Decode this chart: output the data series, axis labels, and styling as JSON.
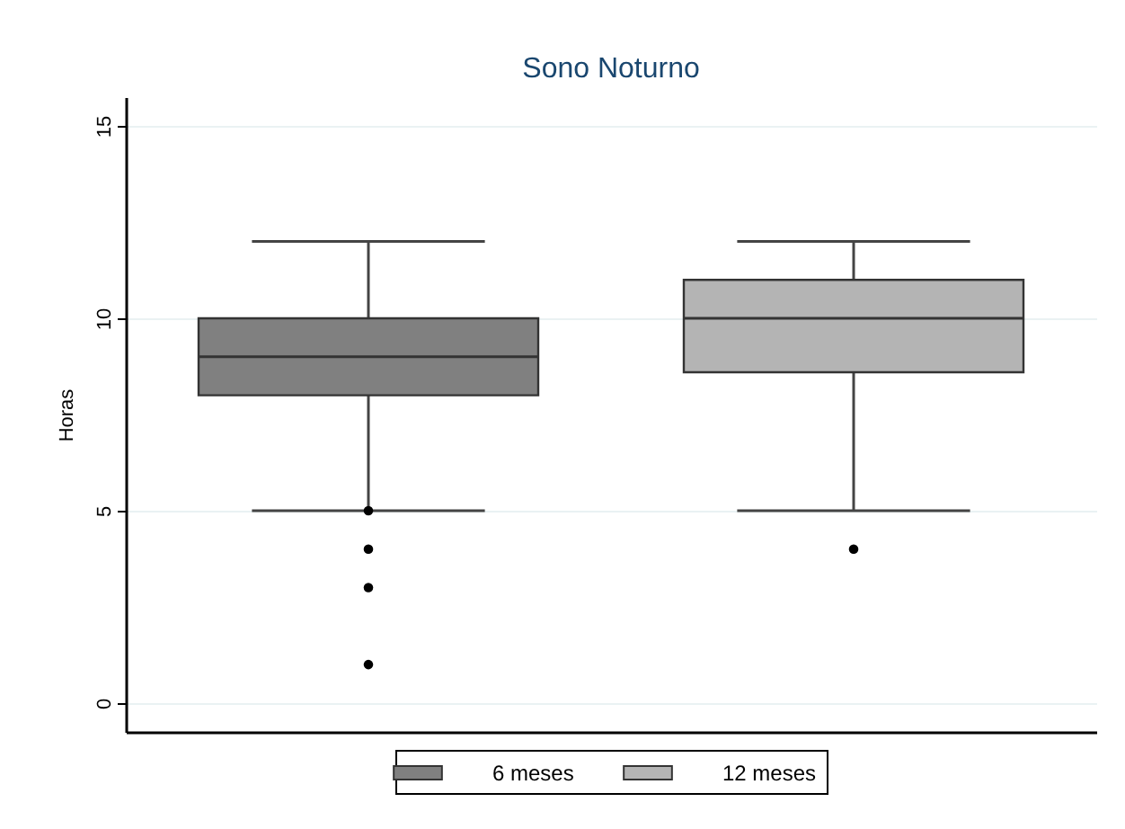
{
  "chart_data": {
    "type": "box",
    "title": "Sono Noturno",
    "ylabel": "Horas",
    "categories": [
      null
    ],
    "series": [
      {
        "name": "6 meses",
        "color": "#808080",
        "boxes": [
          {
            "low": 5,
            "q1": 8,
            "median": 9,
            "q3": 10,
            "high": 12,
            "outliers": [
              5,
              4,
              3,
              1
            ]
          }
        ]
      },
      {
        "name": "12 meses",
        "color": "#b4b4b4",
        "boxes": [
          {
            "low": 5,
            "q1": 8.6,
            "median": 10,
            "q3": 11,
            "high": 12,
            "outliers": [
              4
            ]
          }
        ]
      }
    ],
    "ylim": [
      -0.75,
      15.75
    ],
    "yticks": [
      0,
      5,
      10,
      15
    ],
    "grid": "y",
    "legend": "bottom"
  }
}
